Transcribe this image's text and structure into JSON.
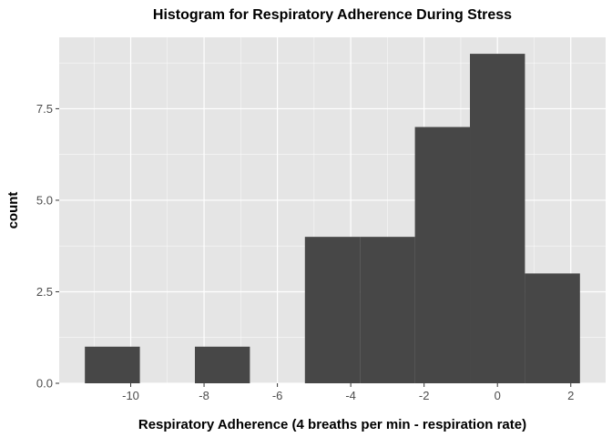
{
  "colors": {
    "panel_background": "#e5e5e5",
    "grid_major": "#ffffff",
    "bar_fill": "#474747",
    "tick_text": "#4d4d4d"
  },
  "chart_data": {
    "type": "bar",
    "subtype": "histogram",
    "title": "Histogram for Respiratory Adherence During Stress",
    "xlabel": "Respiratory Adherence (4 breaths per min - respiration rate)",
    "ylabel": "count",
    "xlim": [
      -11.95,
      2.95
    ],
    "ylim": [
      0,
      9.45
    ],
    "x_ticks": [
      -10,
      -8,
      -6,
      -4,
      -2,
      0,
      2
    ],
    "x_tick_labels": [
      "-10",
      "-8",
      "-6",
      "-4",
      "-2",
      "0",
      "2"
    ],
    "y_ticks": [
      0,
      2.5,
      5,
      7.5
    ],
    "y_tick_labels": [
      "0.0",
      "2.5",
      "5.0",
      "7.5"
    ],
    "bin_width": 1.5,
    "bins": [
      {
        "xmin": -11.25,
        "xmax": -9.75,
        "count": 1
      },
      {
        "xmin": -9.75,
        "xmax": -8.25,
        "count": 0
      },
      {
        "xmin": -8.25,
        "xmax": -6.75,
        "count": 1
      },
      {
        "xmin": -6.75,
        "xmax": -5.25,
        "count": 0
      },
      {
        "xmin": -5.25,
        "xmax": -3.75,
        "count": 4
      },
      {
        "xmin": -3.75,
        "xmax": -2.25,
        "count": 4
      },
      {
        "xmin": -2.25,
        "xmax": -0.75,
        "count": 7
      },
      {
        "xmin": -0.75,
        "xmax": 0.75,
        "count": 9
      },
      {
        "xmin": 0.75,
        "xmax": 2.25,
        "count": 3
      }
    ],
    "grid": true,
    "legend": "none"
  }
}
